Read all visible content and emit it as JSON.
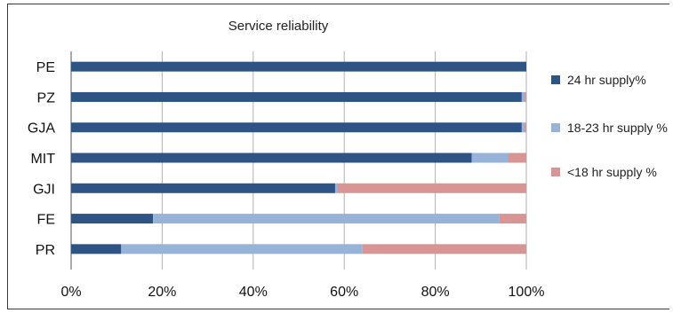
{
  "chart_data": {
    "type": "bar",
    "orientation": "horizontal",
    "stacked": true,
    "title": "Service reliability",
    "categories": [
      "PE",
      "PZ",
      "GJA",
      "MIT",
      "GJI",
      "FE",
      "PR"
    ],
    "series": [
      {
        "name": "24 hr supply%",
        "color": "#2e5486",
        "values": [
          100,
          99,
          99,
          88,
          58,
          18,
          11
        ]
      },
      {
        "name": "18-23 hr supply %",
        "color": "#97b4d8",
        "values": [
          0,
          0.5,
          0.5,
          8,
          0.5,
          76,
          53
        ]
      },
      {
        "name": "<18 hr supply %",
        "color": "#d99594",
        "values": [
          0,
          0.5,
          0.5,
          4,
          41.5,
          6,
          36
        ]
      }
    ],
    "xlim": [
      0,
      100
    ],
    "xticks": [
      "0%",
      "20%",
      "40%",
      "60%",
      "80%",
      "100%"
    ],
    "grid": true,
    "legend": "right"
  }
}
